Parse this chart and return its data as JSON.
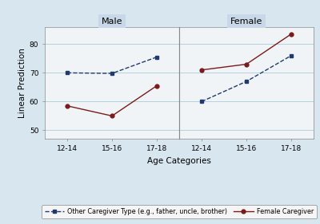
{
  "age_categories": [
    "12-14",
    "15-16",
    "17-18"
  ],
  "male_other": [
    70.0,
    69.8,
    75.5
  ],
  "male_female_cg": [
    58.5,
    55.0,
    65.5
  ],
  "female_other": [
    60.0,
    67.0,
    76.0
  ],
  "female_female_cg": [
    71.0,
    73.0,
    83.5
  ],
  "ylim": [
    47,
    86
  ],
  "yticks": [
    50,
    60,
    70,
    80
  ],
  "panel_titles": [
    "Male",
    "Female"
  ],
  "ylabel": "Linear Prediction",
  "xlabel": "Age Categories",
  "legend_other": "Other Caregiver Type (e.g., father, uncle, brother)",
  "legend_female": "Female Caregiver",
  "color_other": "#1F3A6E",
  "color_female": "#7B1A1A",
  "bg_color": "#D8E6F0",
  "panel_bg": "#F0F4F7",
  "title_bg": "#C8D8E8",
  "legend_bg": "#F5F5F5"
}
